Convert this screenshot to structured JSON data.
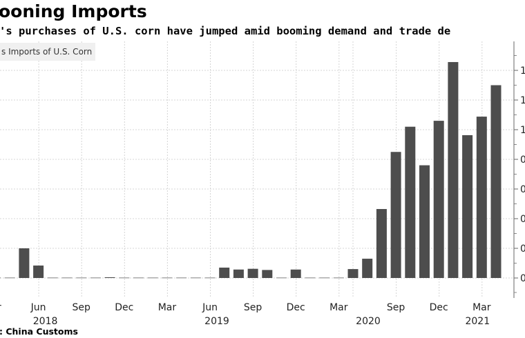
{
  "header": {
    "title": "ooning Imports",
    "subtitle": "'s purchases of U.S. corn have jumped amid booming demand and trade de",
    "source": ": China Customs"
  },
  "chart_data": {
    "type": "bar",
    "title": "ooning Imports",
    "legend": [
      {
        "label": "s Imports of U.S. Corn",
        "color": "#4d4d4d",
        "placement": "top-left"
      }
    ],
    "bar_color": "#4d4d4d",
    "grid": true,
    "yaxis": {
      "side": "right",
      "ylim": [
        0,
        1.6
      ],
      "ticks": [
        0,
        0.2,
        0.4,
        0.6,
        0.8,
        1.0,
        1.2,
        1.4
      ],
      "tick_labels": [
        "0",
        "0",
        "0",
        "0",
        "0",
        "1",
        "1",
        "1"
      ]
    },
    "values": [
      0,
      0,
      0.2,
      0.084,
      0,
      0,
      0,
      0,
      0.005,
      0.002,
      0.002,
      0,
      0,
      0,
      0,
      0,
      0.07,
      0.057,
      0.062,
      0.054,
      0,
      0.057,
      0,
      0,
      0,
      0.06,
      0.13,
      0.465,
      0.85,
      1.02,
      0.76,
      1.06,
      1.456,
      0.963,
      1.088,
      1.3
    ],
    "x_ticks": [
      {
        "index": 3,
        "label": "Jun",
        "year": "2018"
      },
      {
        "index": 6,
        "label": "Sep"
      },
      {
        "index": 9,
        "label": "Dec"
      },
      {
        "index": 12,
        "label": "Mar"
      },
      {
        "index": 15,
        "label": "Jun",
        "year": "2019"
      },
      {
        "index": 18,
        "label": "Sep"
      },
      {
        "index": 21,
        "label": "Dec"
      },
      {
        "index": 24,
        "label": "Mar"
      },
      {
        "index": 28,
        "label": "Sep"
      },
      {
        "index": 31,
        "label": "Dec"
      },
      {
        "index": 34,
        "label": "Mar",
        "year": "2021"
      }
    ],
    "year_2020": "2020",
    "first_tick_partial": "r"
  }
}
